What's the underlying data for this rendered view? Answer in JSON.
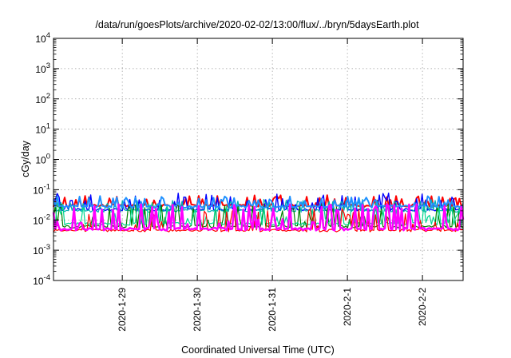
{
  "chart_data": {
    "type": "line",
    "title": "/data/run/goesPlots/archive/2020-02-02/13:00/flux/../bryn/5daysEarth.plot",
    "xlabel": "Coordinated Universal Time (UTC)",
    "ylabel": "cGy/day",
    "yscale": "log",
    "ylim": [
      0.0001,
      10000
    ],
    "xlim": [
      "2020-01-28 02:00",
      "2020-02-02 13:00"
    ],
    "grid": true,
    "y_ticks": [
      {
        "mantissa": "10",
        "exp": "-4"
      },
      {
        "mantissa": "10",
        "exp": "-3"
      },
      {
        "mantissa": "10",
        "exp": "-2"
      },
      {
        "mantissa": "10",
        "exp": "-1"
      },
      {
        "mantissa": "10",
        "exp": "0"
      },
      {
        "mantissa": "10",
        "exp": "1"
      },
      {
        "mantissa": "10",
        "exp": "2"
      },
      {
        "mantissa": "10",
        "exp": "3"
      },
      {
        "mantissa": "10",
        "exp": "4"
      }
    ],
    "x_ticks": [
      "2020-1-29",
      "2020-1-30",
      "2020-1-31",
      "2020-2-1",
      "2020-2-2"
    ],
    "series": [
      {
        "color": "#ff0000",
        "base": 0.03,
        "spike": 0.06,
        "width": 2.0
      },
      {
        "color": "#0000ff",
        "base": 0.022,
        "spike": 0.07,
        "width": 1.4
      },
      {
        "color": "#00b0b0",
        "base": 0.02,
        "spike": 0.045,
        "width": 1.2
      },
      {
        "color": "#008000",
        "base": 0.006,
        "spike": 0.03,
        "width": 1.2
      },
      {
        "color": "#00d890",
        "base": 0.0075,
        "spike": 0.035,
        "width": 1.2
      },
      {
        "color": "#1e90ff",
        "base": 0.028,
        "spike": 0.055,
        "width": 2.0
      },
      {
        "color": "#ff0000",
        "base": 0.0045,
        "spike": 0.022,
        "width": 1.2
      },
      {
        "color": "#ff00ff",
        "base": 0.005,
        "spike": 0.03,
        "width": 2.5
      }
    ]
  }
}
